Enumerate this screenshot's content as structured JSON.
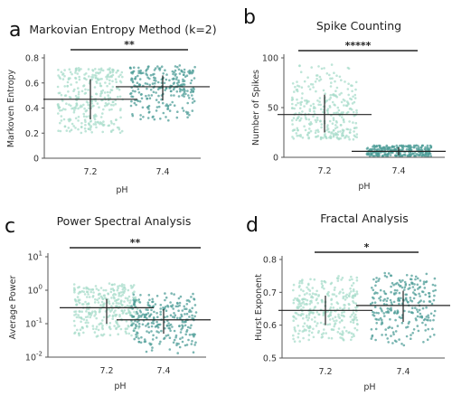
{
  "colors": {
    "light_points": "#a8dccb",
    "dark_points": "#4f9e98",
    "lines": "#222222",
    "background": "#ffffff"
  },
  "chart_data": [
    {
      "panel": "a",
      "type": "scatter",
      "title": "Markovian Entropy Method (k=2)",
      "xlabel": "pH",
      "ylabel": "Markoven Entropy",
      "categories": [
        "7.2",
        "7.4"
      ],
      "yscale": "linear",
      "ylim": [
        0,
        0.8
      ],
      "yticks": [
        0,
        0.2,
        0.4,
        0.6,
        0.8
      ],
      "ytick_labels": [
        "0",
        "0.2",
        "0.4",
        "0.6",
        "0.8"
      ],
      "groups": [
        {
          "category": "7.2",
          "mean": 0.47,
          "sd_low": 0.31,
          "sd_high": 0.63,
          "range": [
            0.2,
            0.72
          ],
          "n": 320,
          "color": "light"
        },
        {
          "category": "7.4",
          "mean": 0.57,
          "sd_low": 0.46,
          "sd_high": 0.66,
          "range": [
            0.3,
            0.74
          ],
          "n": 260,
          "color": "dark"
        }
      ],
      "significance": "**"
    },
    {
      "panel": "b",
      "type": "scatter",
      "title": "Spike Counting",
      "xlabel": "pH",
      "ylabel": "Number of Spikes",
      "categories": [
        "7.2",
        "7.4"
      ],
      "yscale": "linear",
      "ylim": [
        0,
        100
      ],
      "yticks": [
        0,
        50,
        100
      ],
      "ytick_labels": [
        "0",
        "50",
        "100"
      ],
      "groups": [
        {
          "category": "7.2",
          "mean": 43,
          "sd_low": 25,
          "sd_high": 63,
          "range": [
            18,
            95
          ],
          "n": 320,
          "color": "light"
        },
        {
          "category": "7.4",
          "mean": 6,
          "sd_low": 2,
          "sd_high": 10,
          "range": [
            1,
            12
          ],
          "n": 260,
          "color": "dark"
        }
      ],
      "significance": "*****"
    },
    {
      "panel": "c",
      "type": "scatter",
      "title": "Power Spectral Analysis",
      "xlabel": "pH",
      "ylabel": "Average Power",
      "categories": [
        "7.2",
        "7.4"
      ],
      "yscale": "log",
      "ylim": [
        0.01,
        10
      ],
      "yticks": [
        0.01,
        0.1,
        1,
        10
      ],
      "ytick_labels": [
        {
          "base": "10",
          "exp": "-2"
        },
        {
          "base": "10",
          "exp": "-1"
        },
        {
          "base": "10",
          "exp": "0"
        },
        {
          "base": "10",
          "exp": "1"
        }
      ],
      "groups": [
        {
          "category": "7.2",
          "mean": 0.3,
          "sd_low": 0.1,
          "sd_high": 0.55,
          "range": [
            0.04,
            1.6
          ],
          "n": 320,
          "color": "light"
        },
        {
          "category": "7.4",
          "mean": 0.13,
          "sd_low": 0.05,
          "sd_high": 0.27,
          "range": [
            0.013,
            0.8
          ],
          "n": 260,
          "color": "dark"
        }
      ],
      "significance": "**"
    },
    {
      "panel": "d",
      "type": "scatter",
      "title": "Fractal Analysis",
      "xlabel": "pH",
      "ylabel": "Hurst Exponent",
      "categories": [
        "7.2",
        "7.4"
      ],
      "yscale": "linear",
      "ylim": [
        0.5,
        0.8
      ],
      "yticks": [
        0.5,
        0.6,
        0.7,
        0.8
      ],
      "ytick_labels": [
        "0.5",
        "0.6",
        "0.7",
        "0.8"
      ],
      "groups": [
        {
          "category": "7.2",
          "mean": 0.645,
          "sd_low": 0.6,
          "sd_high": 0.69,
          "range": [
            0.55,
            0.75
          ],
          "n": 320,
          "color": "light"
        },
        {
          "category": "7.4",
          "mean": 0.66,
          "sd_low": 0.61,
          "sd_high": 0.705,
          "range": [
            0.53,
            0.76
          ],
          "n": 260,
          "color": "dark"
        }
      ],
      "significance": "*"
    }
  ]
}
